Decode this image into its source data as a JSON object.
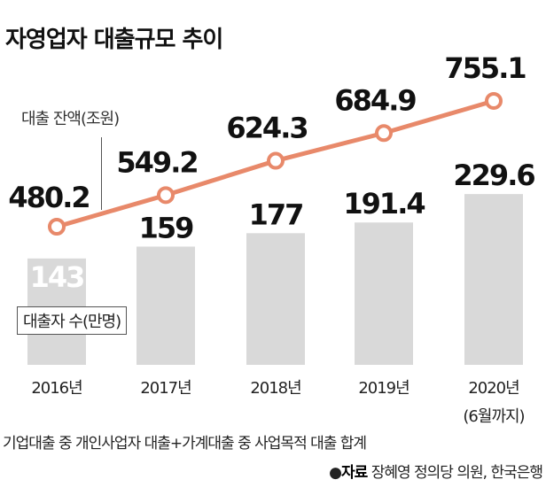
{
  "title": "자영업자 대출규모 추이",
  "note": "기업대출 중 개인사업자 대출+가계대출 중 사업목적 대출 합계",
  "source": {
    "bullet": "●",
    "label": "자료",
    "text": "장혜영 정의당 의원, 한국은행"
  },
  "colors": {
    "line": "#e8896a",
    "bar": "#d9d9d9",
    "first_bar_label": "#ffffff",
    "label": "#111111"
  },
  "chart_data": {
    "type": "bar+line",
    "categories": [
      "2016년",
      "2017년",
      "2018년",
      "2019년",
      "2020년"
    ],
    "category_sublabels": [
      "",
      "",
      "",
      "",
      "(6월까지)"
    ],
    "series": [
      {
        "name": "대출 잔액(조원)",
        "type": "line",
        "values": [
          480.2,
          549.2,
          624.3,
          684.9,
          755.1
        ],
        "labels": [
          "480.2",
          "549.2",
          "624.3",
          "684.9",
          "755.1"
        ]
      },
      {
        "name": "대출자 수(만명)",
        "type": "bar",
        "values": [
          143,
          159,
          177,
          191.4,
          229.6
        ],
        "labels": [
          "143",
          "159",
          "177",
          "191.4",
          "229.6"
        ]
      }
    ],
    "grid": false
  }
}
